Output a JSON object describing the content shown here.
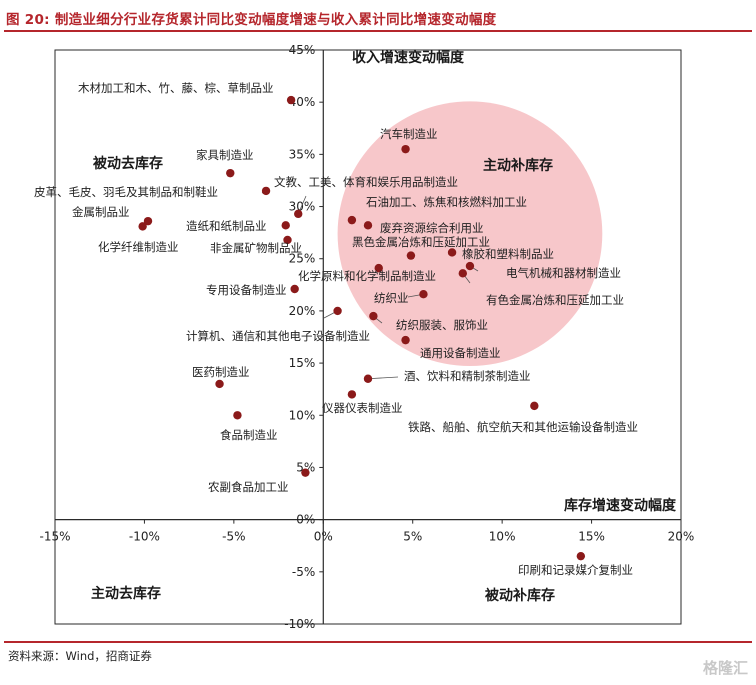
{
  "header": {
    "title": "图 20:  制造业细分行业存货累计同比变动幅度增速与收入累计同比增速变动幅度"
  },
  "footer": {
    "source": "资料来源：Wind，招商证券",
    "watermark": "格隆汇"
  },
  "colors": {
    "accent": "#b5262c",
    "point": "#8b1a1a",
    "circle": "#f2a9ae"
  },
  "chart_data": {
    "type": "scatter",
    "title": "",
    "xlabel": "库存增速变动幅度",
    "ylabel": "收入增速变动幅度",
    "xlim": [
      -15,
      20
    ],
    "ylim": [
      -10,
      45
    ],
    "xticks": [
      -15,
      -10,
      -5,
      0,
      5,
      10,
      15,
      20
    ],
    "yticks": [
      -10,
      -5,
      0,
      5,
      10,
      15,
      20,
      25,
      30,
      35,
      40,
      45
    ],
    "xtick_labels": [
      "-15%",
      "-10%",
      "-5%",
      "0%",
      "5%",
      "10%",
      "15%",
      "20%"
    ],
    "ytick_labels": [
      "-10%",
      "-5%",
      "0%",
      "5%",
      "10%",
      "15%",
      "20%",
      "25%",
      "30%",
      "35%",
      "40%",
      "45%"
    ],
    "quadrants": {
      "top_right": "主动补库存",
      "top_left": "被动去库存",
      "bottom_left": "主动去库存",
      "bottom_right": "被动补库存"
    },
    "highlight": {
      "label": "主动补库存",
      "center": [
        8.2,
        27.4
      ],
      "radius_x": 7.4
    },
    "points": [
      {
        "name": "木材加工和木、竹、藤、棕、草制品业",
        "x": -1.8,
        "y": 40.2
      },
      {
        "name": "汽车制造业",
        "x": 4.6,
        "y": 35.5
      },
      {
        "name": "家具制造业",
        "x": -5.2,
        "y": 33.2
      },
      {
        "name": "文教、工美、体育和娱乐用品制造业",
        "x": -1.4,
        "y": 29.3
      },
      {
        "name": "皮革、毛皮、羽毛及其制品和制鞋业",
        "x": -3.2,
        "y": 31.5
      },
      {
        "name": "金属制品业",
        "x": -9.8,
        "y": 28.6
      },
      {
        "name": "化学纤维制造业",
        "x": -10.1,
        "y": 28.1
      },
      {
        "name": "造纸和纸制品业",
        "x": -2.1,
        "y": 28.2
      },
      {
        "name": "非金属矿物制品业",
        "x": -2.0,
        "y": 26.8
      },
      {
        "name": "石油加工、炼焦和核燃料加工业",
        "x": 1.6,
        "y": 28.7
      },
      {
        "name": "废弃资源综合利用业",
        "x": 2.5,
        "y": 28.2
      },
      {
        "name": "黑色金属冶炼和压延加工业",
        "x": 4.9,
        "y": 25.3
      },
      {
        "name": "橡胶和塑料制品业",
        "x": 7.2,
        "y": 25.6
      },
      {
        "name": "电气机械和器材制造业",
        "x": 8.2,
        "y": 24.3
      },
      {
        "name": "化学原料和化学制品制造业",
        "x": 3.1,
        "y": 24.1
      },
      {
        "name": "有色金属冶炼和压延加工业",
        "x": 7.8,
        "y": 23.6
      },
      {
        "name": "专用设备制造业",
        "x": -1.6,
        "y": 22.1
      },
      {
        "name": "纺织业",
        "x": 5.6,
        "y": 21.6
      },
      {
        "name": "计算机、通信和其他电子设备制造业",
        "x": 0.8,
        "y": 20.0
      },
      {
        "name": "纺织服装、服饰业",
        "x": 2.8,
        "y": 19.5
      },
      {
        "name": "通用设备制造业",
        "x": 4.6,
        "y": 17.2
      },
      {
        "name": "医药制造业",
        "x": -5.8,
        "y": 13.0
      },
      {
        "name": "酒、饮料和精制茶制造业",
        "x": 2.5,
        "y": 13.5
      },
      {
        "name": "仪器仪表制造业",
        "x": 1.6,
        "y": 12.0
      },
      {
        "name": "铁路、船舶、航空航天和其他运输设备制造业",
        "x": 11.8,
        "y": 10.9
      },
      {
        "name": "食品制造业",
        "x": -4.8,
        "y": 10.0
      },
      {
        "name": "农副食品加工业",
        "x": -1.0,
        "y": 4.5
      },
      {
        "name": "印刷和记录媒介复制业",
        "x": 14.4,
        "y": -3.5
      }
    ]
  }
}
